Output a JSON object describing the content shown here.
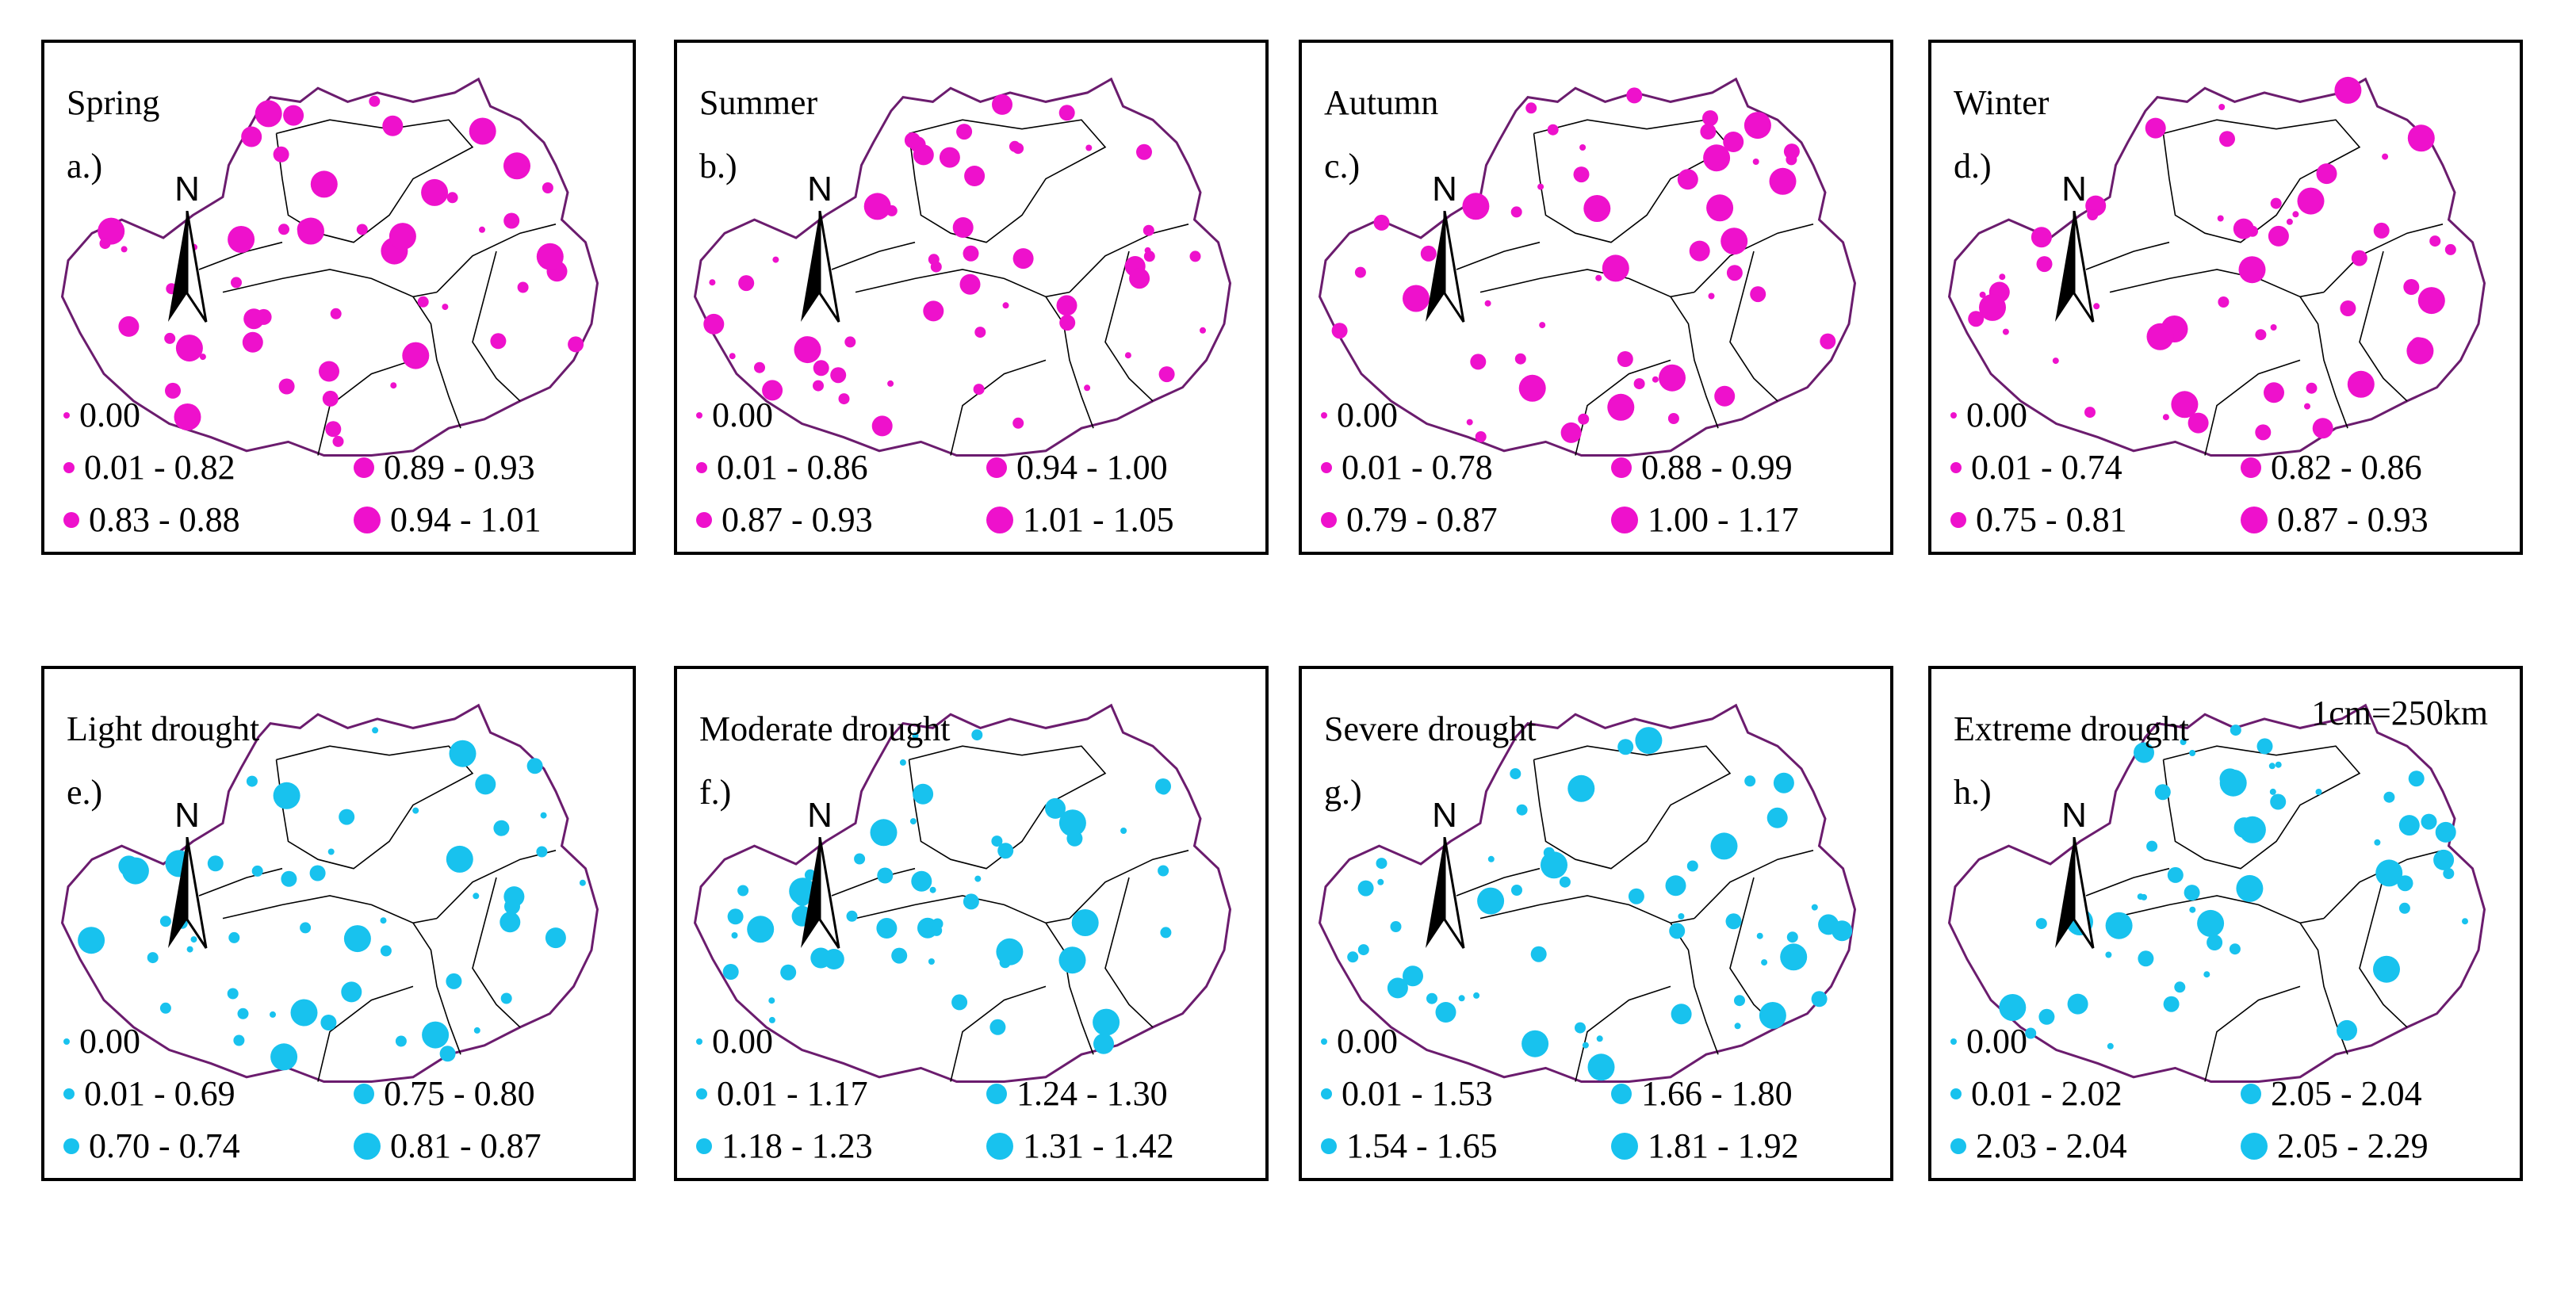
{
  "colors": {
    "season": "#ee11cc",
    "drought": "#18c2ee",
    "outline": "#6b1c6e",
    "inner": "#000000"
  },
  "scale_text": "1cm=250km",
  "north_label": "N",
  "panels": [
    {
      "id": "a",
      "title": "Spring",
      "label": "a.)",
      "color": "season",
      "legend": [
        "0.00",
        "0.01 - 0.82",
        "0.83 - 0.88",
        "0.89 - 0.93",
        "0.94 - 1.01"
      ]
    },
    {
      "id": "b",
      "title": "Summer",
      "label": "b.)",
      "color": "season",
      "legend": [
        "0.00",
        "0.01 - 0.86",
        "0.87 - 0.93",
        "0.94 - 1.00",
        "1.01 - 1.05"
      ]
    },
    {
      "id": "c",
      "title": "Autumn",
      "label": "c.)",
      "color": "season",
      "legend": [
        "0.00",
        "0.01 - 0.78",
        "0.79 - 0.87",
        "0.88 - 0.99",
        "1.00 - 1.17"
      ]
    },
    {
      "id": "d",
      "title": "Winter",
      "label": "d.)",
      "color": "season",
      "legend": [
        "0.00",
        "0.01 - 0.74",
        "0.75 - 0.81",
        "0.82 - 0.86",
        "0.87 - 0.93"
      ]
    },
    {
      "id": "e",
      "title": "Light drought",
      "label": "e.)",
      "color": "drought",
      "legend": [
        "0.00",
        "0.01 - 0.69",
        "0.70 - 0.74",
        "0.75 - 0.80",
        "0.81 - 0.87"
      ]
    },
    {
      "id": "f",
      "title": "Moderate drought",
      "label": "f.)",
      "color": "drought",
      "legend": [
        "0.00",
        "0.01 - 1.17",
        "1.18 - 1.23",
        "1.24 - 1.30",
        "1.31 - 1.42"
      ]
    },
    {
      "id": "g",
      "title": "Severe drought",
      "label": "g.)",
      "color": "drought",
      "legend": [
        "0.00",
        "0.01 - 1.53",
        "1.54 - 1.65",
        "1.66 - 1.80",
        "1.81 - 1.92"
      ]
    },
    {
      "id": "h",
      "title": "Extreme drought",
      "label": "h.)",
      "color": "drought",
      "scale": true,
      "legend": [
        "0.00",
        "0.01 - 2.02",
        "2.03 - 2.04",
        "2.05 - 2.04",
        "2.05 - 2.29"
      ]
    }
  ]
}
